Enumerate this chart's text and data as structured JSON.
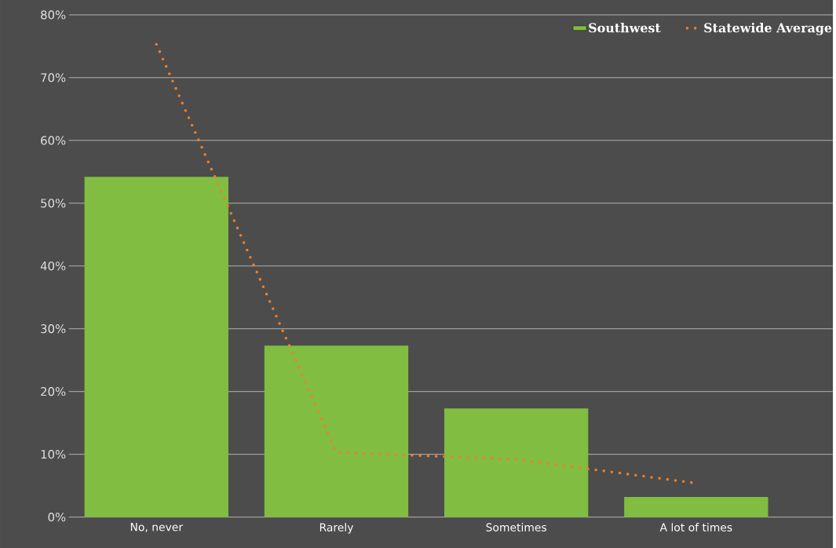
{
  "chart_data": {
    "type": "bar",
    "categories": [
      "No, never",
      "Rarely",
      "Sometimes",
      "A lot of times"
    ],
    "series": [
      {
        "name": "Southwest",
        "color": "#80bd41",
        "values": [
          54.2,
          27.3,
          17.3,
          3.2
        ]
      },
      {
        "name": "Statewide Average",
        "type": "line",
        "line_style": "dotted",
        "color": "#f07f2a",
        "values": [
          75.3,
          10.3,
          9.2,
          5.4
        ]
      }
    ],
    "ylim": [
      0,
      80
    ],
    "yticks": [
      {
        "value": 0,
        "label": "0%"
      },
      {
        "value": 10,
        "label": "10%"
      },
      {
        "value": 20,
        "label": "20%"
      },
      {
        "value": 30,
        "label": "30%"
      },
      {
        "value": 40,
        "label": "40%"
      },
      {
        "value": 50,
        "label": "50%"
      },
      {
        "value": 60,
        "label": "60%"
      },
      {
        "value": 70,
        "label": "70%"
      },
      {
        "value": 80,
        "label": "80%"
      }
    ],
    "grid": "y",
    "legend": "top right"
  }
}
